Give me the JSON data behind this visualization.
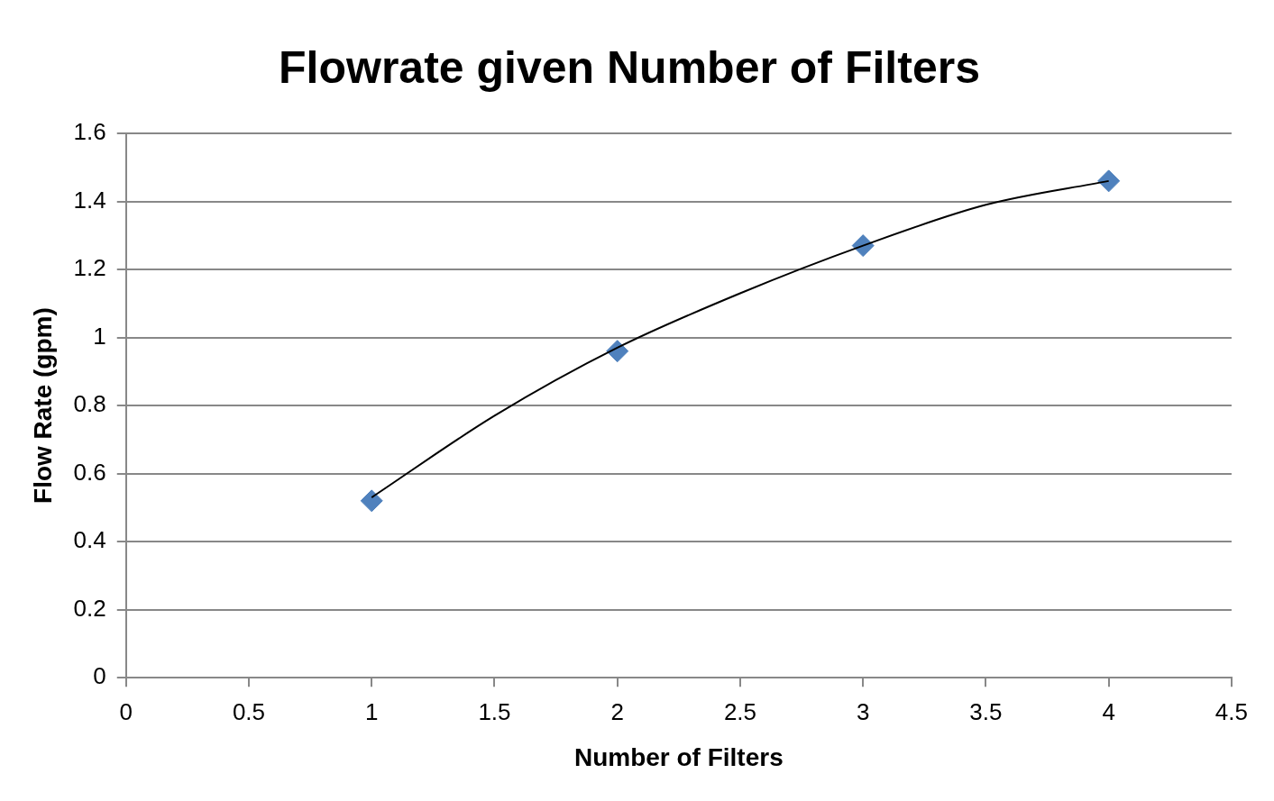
{
  "chart_data": {
    "type": "scatter",
    "title": "Flowrate given Number of Filters",
    "xlabel": "Number of Filters",
    "ylabel": "Flow Rate (gpm)",
    "series": [
      {
        "color": "#4f81bd",
        "marker": "diamond",
        "x": [
          1,
          2,
          3,
          4
        ],
        "values": [
          0.52,
          0.96,
          1.27,
          1.46
        ]
      },
      {
        "type": "line",
        "color": "#000000",
        "marker": "none",
        "x": [
          1,
          1.5,
          2,
          2.5,
          3,
          3.5,
          4
        ],
        "values": [
          0.53,
          0.77,
          0.97,
          1.13,
          1.27,
          1.39,
          1.46
        ]
      }
    ],
    "xlim": [
      0,
      4.5
    ],
    "xticks": [
      0,
      0.5,
      1,
      1.5,
      2,
      2.5,
      3,
      3.5,
      4,
      4.5
    ],
    "ylim": [
      0,
      1.6
    ],
    "yticks": [
      0,
      0.2,
      0.4,
      0.6,
      0.8,
      1,
      1.2,
      1.4,
      1.6
    ],
    "grid": "y"
  }
}
